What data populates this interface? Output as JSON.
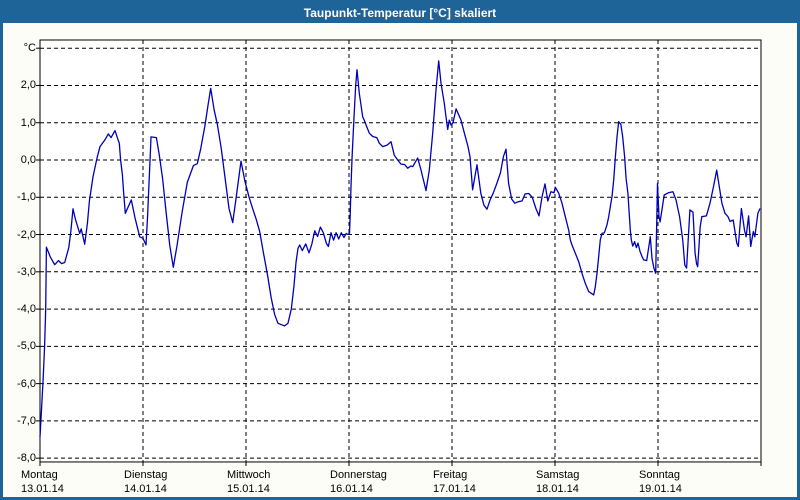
{
  "window": {
    "title": "Taupunkt-Temperatur [°C] skaliert",
    "titlebar_color": "#1f6498",
    "border_color": "#1f6498",
    "client_background": "#fbfdf6"
  },
  "chart_data": {
    "type": "line",
    "title": "Taupunkt-Temperatur [°C] skaliert",
    "ylabel": "°C",
    "xlabel": "",
    "grid": "dashed",
    "legend": "none",
    "series_name": "Taupunkt",
    "series_color": "#0000bb",
    "plot_background": "#ffffff",
    "grid_color": "#000000",
    "ylim": [
      -8.0,
      3.2
    ],
    "x_unit": "days since Monday 00:00",
    "y_ticks": [
      {
        "label": "°C",
        "value": 3
      },
      {
        "label": "2,0",
        "value": 2
      },
      {
        "label": "1,0",
        "value": 1
      },
      {
        "label": "0,0",
        "value": 0
      },
      {
        "label": "-1,0",
        "value": -1
      },
      {
        "label": "-2,0",
        "value": -2
      },
      {
        "label": "-3,0",
        "value": -3
      },
      {
        "label": "-4,0",
        "value": -4
      },
      {
        "label": "-5,0",
        "value": -5
      },
      {
        "label": "-6,0",
        "value": -6
      },
      {
        "label": "-7,0",
        "value": -7
      },
      {
        "label": "-8,0",
        "value": -8
      }
    ],
    "x_days": [
      {
        "name": "Montag",
        "date": "13.01.14",
        "t": 0
      },
      {
        "name": "Dienstag",
        "date": "14.01.14",
        "t": 1
      },
      {
        "name": "Mittwoch",
        "date": "15.01.14",
        "t": 2
      },
      {
        "name": "Donnerstag",
        "date": "16.01.14",
        "t": 3
      },
      {
        "name": "Freitag",
        "date": "17.01.14",
        "t": 4
      },
      {
        "name": "Samstag",
        "date": "18.01.14",
        "t": 5
      },
      {
        "name": "Sonntag",
        "date": "19.01.14",
        "t": 6
      }
    ],
    "points": [
      [
        0.0,
        -7.43
      ],
      [
        0.015,
        -6.7
      ],
      [
        0.03,
        -5.9
      ],
      [
        0.045,
        -5.0
      ],
      [
        0.055,
        -4.0
      ],
      [
        0.062,
        -2.34
      ],
      [
        0.1,
        -2.6
      ],
      [
        0.143,
        -2.81
      ],
      [
        0.18,
        -2.7
      ],
      [
        0.21,
        -2.78
      ],
      [
        0.24,
        -2.75
      ],
      [
        0.28,
        -2.35
      ],
      [
        0.3,
        -1.9
      ],
      [
        0.32,
        -1.31
      ],
      [
        0.345,
        -1.6
      ],
      [
        0.385,
        -1.97
      ],
      [
        0.4,
        -1.85
      ],
      [
        0.434,
        -2.26
      ],
      [
        0.46,
        -1.7
      ],
      [
        0.48,
        -1.1
      ],
      [
        0.515,
        -0.45
      ],
      [
        0.553,
        0.05
      ],
      [
        0.583,
        0.36
      ],
      [
        0.63,
        0.54
      ],
      [
        0.663,
        0.7
      ],
      [
        0.69,
        0.6
      ],
      [
        0.728,
        0.79
      ],
      [
        0.75,
        0.6
      ],
      [
        0.77,
        0.45
      ],
      [
        0.783,
        0.0
      ],
      [
        0.8,
        -0.4
      ],
      [
        0.813,
        -0.9
      ],
      [
        0.828,
        -1.43
      ],
      [
        0.886,
        -1.07
      ],
      [
        0.922,
        -1.55
      ],
      [
        0.968,
        -2.06
      ],
      [
        1.0,
        -2.1
      ],
      [
        1.029,
        -2.28
      ],
      [
        1.045,
        -1.5
      ],
      [
        1.06,
        -0.5
      ],
      [
        1.075,
        0.4
      ],
      [
        1.078,
        0.62
      ],
      [
        1.13,
        0.6
      ],
      [
        1.16,
        0.1
      ],
      [
        1.19,
        -0.5
      ],
      [
        1.22,
        -1.3
      ],
      [
        1.26,
        -2.3
      ],
      [
        1.294,
        -2.88
      ],
      [
        1.33,
        -2.3
      ],
      [
        1.38,
        -1.4
      ],
      [
        1.43,
        -0.6
      ],
      [
        1.489,
        -0.15
      ],
      [
        1.527,
        -0.1
      ],
      [
        1.56,
        0.3
      ],
      [
        1.6,
        0.9
      ],
      [
        1.63,
        1.45
      ],
      [
        1.657,
        1.92
      ],
      [
        1.69,
        1.35
      ],
      [
        1.722,
        0.95
      ],
      [
        1.76,
        0.3
      ],
      [
        1.8,
        -0.55
      ],
      [
        1.835,
        -1.3
      ],
      [
        1.871,
        -1.68
      ],
      [
        1.91,
        -0.9
      ],
      [
        1.951,
        -0.03
      ],
      [
        1.99,
        -0.58
      ],
      [
        2.03,
        -1.0
      ],
      [
        2.07,
        -1.35
      ],
      [
        2.1,
        -1.6
      ],
      [
        2.133,
        -1.92
      ],
      [
        2.17,
        -2.5
      ],
      [
        2.21,
        -3.1
      ],
      [
        2.245,
        -3.7
      ],
      [
        2.279,
        -4.15
      ],
      [
        2.31,
        -4.38
      ],
      [
        2.343,
        -4.42
      ],
      [
        2.375,
        -4.45
      ],
      [
        2.408,
        -4.38
      ],
      [
        2.44,
        -4.0
      ],
      [
        2.465,
        -3.4
      ],
      [
        2.485,
        -2.75
      ],
      [
        2.505,
        -2.37
      ],
      [
        2.521,
        -2.28
      ],
      [
        2.547,
        -2.43
      ],
      [
        2.58,
        -2.25
      ],
      [
        2.612,
        -2.49
      ],
      [
        2.64,
        -2.25
      ],
      [
        2.667,
        -1.9
      ],
      [
        2.695,
        -2.05
      ],
      [
        2.722,
        -1.8
      ],
      [
        2.75,
        -1.95
      ],
      [
        2.78,
        -2.23
      ],
      [
        2.8,
        -2.32
      ],
      [
        2.825,
        -1.95
      ],
      [
        2.85,
        -2.15
      ],
      [
        2.875,
        -1.95
      ],
      [
        2.9,
        -2.12
      ],
      [
        2.925,
        -1.95
      ],
      [
        2.95,
        -2.08
      ],
      [
        2.974,
        -1.97
      ],
      [
        2.99,
        -2.0
      ],
      [
        3.005,
        -1.97
      ],
      [
        3.012,
        -1.47
      ],
      [
        3.02,
        -0.63
      ],
      [
        3.03,
        0.09
      ],
      [
        3.05,
        1.2
      ],
      [
        3.065,
        2.0
      ],
      [
        3.078,
        2.42
      ],
      [
        3.1,
        1.79
      ],
      [
        3.133,
        1.16
      ],
      [
        3.148,
        1.07
      ],
      [
        3.197,
        0.72
      ],
      [
        3.23,
        0.63
      ],
      [
        3.27,
        0.6
      ],
      [
        3.294,
        0.45
      ],
      [
        3.327,
        0.36
      ],
      [
        3.37,
        0.4
      ],
      [
        3.408,
        0.49
      ],
      [
        3.44,
        0.13
      ],
      [
        3.473,
        0.0
      ],
      [
        3.505,
        -0.11
      ],
      [
        3.54,
        -0.12
      ],
      [
        3.57,
        -0.22
      ],
      [
        3.6,
        -0.16
      ],
      [
        3.618,
        -0.18
      ],
      [
        3.645,
        -0.05
      ],
      [
        3.667,
        0.05
      ],
      [
        3.699,
        -0.27
      ],
      [
        3.731,
        -0.63
      ],
      [
        3.748,
        -0.82
      ],
      [
        3.78,
        -0.27
      ],
      [
        3.813,
        0.72
      ],
      [
        3.845,
        1.88
      ],
      [
        3.871,
        2.66
      ],
      [
        3.893,
        2.06
      ],
      [
        3.925,
        1.52
      ],
      [
        3.942,
        1.16
      ],
      [
        3.958,
        0.82
      ],
      [
        3.974,
        1.07
      ],
      [
        3.99,
        0.94
      ],
      [
        4.01,
        1.0
      ],
      [
        4.04,
        1.37
      ],
      [
        4.087,
        1.07
      ],
      [
        4.12,
        0.72
      ],
      [
        4.155,
        0.36
      ],
      [
        4.175,
        0.09
      ],
      [
        4.2,
        -0.8
      ],
      [
        4.243,
        -0.13
      ],
      [
        4.28,
        -0.89
      ],
      [
        4.31,
        -1.21
      ],
      [
        4.34,
        -1.32
      ],
      [
        4.37,
        -1.07
      ],
      [
        4.4,
        -0.89
      ],
      [
        4.435,
        -0.63
      ],
      [
        4.47,
        -0.35
      ],
      [
        4.5,
        0.1
      ],
      [
        4.524,
        0.29
      ],
      [
        4.55,
        -0.63
      ],
      [
        4.58,
        -1.05
      ],
      [
        4.61,
        -1.16
      ],
      [
        4.645,
        -1.12
      ],
      [
        4.68,
        -1.1
      ],
      [
        4.71,
        -0.91
      ],
      [
        4.745,
        -0.9
      ],
      [
        4.78,
        -1.0
      ],
      [
        4.815,
        -1.3
      ],
      [
        4.845,
        -1.5
      ],
      [
        4.875,
        -0.98
      ],
      [
        4.903,
        -0.64
      ],
      [
        4.93,
        -1.1
      ],
      [
        4.96,
        -0.85
      ],
      [
        4.99,
        -0.88
      ],
      [
        5.003,
        -0.73
      ],
      [
        5.036,
        -0.89
      ],
      [
        5.068,
        -1.16
      ],
      [
        5.1,
        -1.52
      ],
      [
        5.133,
        -1.88
      ],
      [
        5.149,
        -2.14
      ],
      [
        5.165,
        -2.28
      ],
      [
        5.197,
        -2.5
      ],
      [
        5.23,
        -2.73
      ],
      [
        5.262,
        -3.04
      ],
      [
        5.294,
        -3.31
      ],
      [
        5.327,
        -3.53
      ],
      [
        5.359,
        -3.59
      ],
      [
        5.376,
        -3.62
      ],
      [
        5.391,
        -3.4
      ],
      [
        5.408,
        -3.04
      ],
      [
        5.424,
        -2.59
      ],
      [
        5.44,
        -2.14
      ],
      [
        5.456,
        -1.97
      ],
      [
        5.48,
        -1.95
      ],
      [
        5.505,
        -1.74
      ],
      [
        5.521,
        -1.52
      ],
      [
        5.553,
        -0.98
      ],
      [
        5.57,
        -0.54
      ],
      [
        5.586,
        0.09
      ],
      [
        5.602,
        0.62
      ],
      [
        5.618,
        1.03
      ],
      [
        5.64,
        0.95
      ],
      [
        5.657,
        0.62
      ],
      [
        5.676,
        0.09
      ],
      [
        5.69,
        -0.5
      ],
      [
        5.708,
        -0.89
      ],
      [
        5.731,
        -1.88
      ],
      [
        5.741,
        -2.14
      ],
      [
        5.754,
        -2.31
      ],
      [
        5.773,
        -2.19
      ],
      [
        5.79,
        -2.35
      ],
      [
        5.806,
        -2.23
      ],
      [
        5.825,
        -2.45
      ],
      [
        5.845,
        -2.59
      ],
      [
        5.861,
        -2.68
      ],
      [
        5.89,
        -2.7
      ],
      [
        5.925,
        -2.06
      ],
      [
        5.942,
        -2.64
      ],
      [
        5.96,
        -2.9
      ],
      [
        5.978,
        -3.04
      ],
      [
        5.995,
        -0.63
      ],
      [
        6.01,
        -1.52
      ],
      [
        6.02,
        -1.66
      ],
      [
        6.06,
        -0.94
      ],
      [
        6.1,
        -0.88
      ],
      [
        6.145,
        -0.85
      ],
      [
        6.175,
        -1.07
      ],
      [
        6.21,
        -1.52
      ],
      [
        6.24,
        -2.14
      ],
      [
        6.26,
        -2.82
      ],
      [
        6.278,
        -2.9
      ],
      [
        6.31,
        -1.34
      ],
      [
        6.34,
        -1.4
      ],
      [
        6.36,
        -2.5
      ],
      [
        6.375,
        -2.79
      ],
      [
        6.385,
        -2.86
      ],
      [
        6.41,
        -1.79
      ],
      [
        6.425,
        -1.52
      ],
      [
        6.47,
        -1.5
      ],
      [
        6.505,
        -1.16
      ],
      [
        6.54,
        -0.7
      ],
      [
        6.57,
        -0.27
      ],
      [
        6.6,
        -0.8
      ],
      [
        6.62,
        -1.16
      ],
      [
        6.65,
        -1.43
      ],
      [
        6.68,
        -1.52
      ],
      [
        6.7,
        -1.65
      ],
      [
        6.73,
        -1.61
      ],
      [
        6.765,
        -2.23
      ],
      [
        6.78,
        -2.32
      ],
      [
        6.81,
        -1.3
      ],
      [
        6.84,
        -1.88
      ],
      [
        6.855,
        -2.06
      ],
      [
        6.88,
        -1.5
      ],
      [
        6.9,
        -2.32
      ],
      [
        6.925,
        -1.92
      ],
      [
        6.94,
        -2.06
      ],
      [
        6.97,
        -1.43
      ],
      [
        6.99,
        -1.3
      ]
    ]
  }
}
